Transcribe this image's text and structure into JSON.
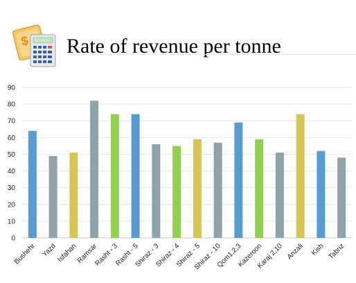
{
  "header": {
    "title": "Rate of revenue per tonne",
    "icon": "money-calculator-icon"
  },
  "colors": {
    "blue": "#5b9bd5",
    "gray": "#8fa3a8",
    "yellow": "#d6c65a",
    "green": "#92d050",
    "grid": "#e6e6e6"
  },
  "chart_data": {
    "type": "bar",
    "title": "Rate of revenue per tonne",
    "xlabel": "",
    "ylabel": "",
    "ylim": [
      0,
      90
    ],
    "yticks": [
      0,
      10,
      20,
      30,
      40,
      50,
      60,
      70,
      80,
      90
    ],
    "grid": true,
    "categories": [
      "Bushehr",
      "Yazd",
      "Isfahan",
      "Ramsar",
      "Rasht - 3",
      "Rasht - 5",
      "Shiraz - 3",
      "Shiraz - 4",
      "Shiraz - 5",
      "Shiraz - 10",
      "Qom1,2,3",
      "Kazeroon",
      "Karaj 2,10",
      "Anzali",
      "Kish",
      "Tabriz"
    ],
    "values": [
      64,
      49,
      51,
      82,
      74,
      74,
      56,
      55,
      59,
      57,
      69,
      59,
      51,
      74,
      52,
      48
    ],
    "bar_colors": [
      "#5b9bd5",
      "#8fa3a8",
      "#d6c65a",
      "#8fa3a8",
      "#92d050",
      "#5b9bd5",
      "#8fa3a8",
      "#92d050",
      "#d6c65a",
      "#8fa3a8",
      "#5b9bd5",
      "#92d050",
      "#8fa3a8",
      "#d6c65a",
      "#5b9bd5",
      "#8fa3a8"
    ]
  }
}
